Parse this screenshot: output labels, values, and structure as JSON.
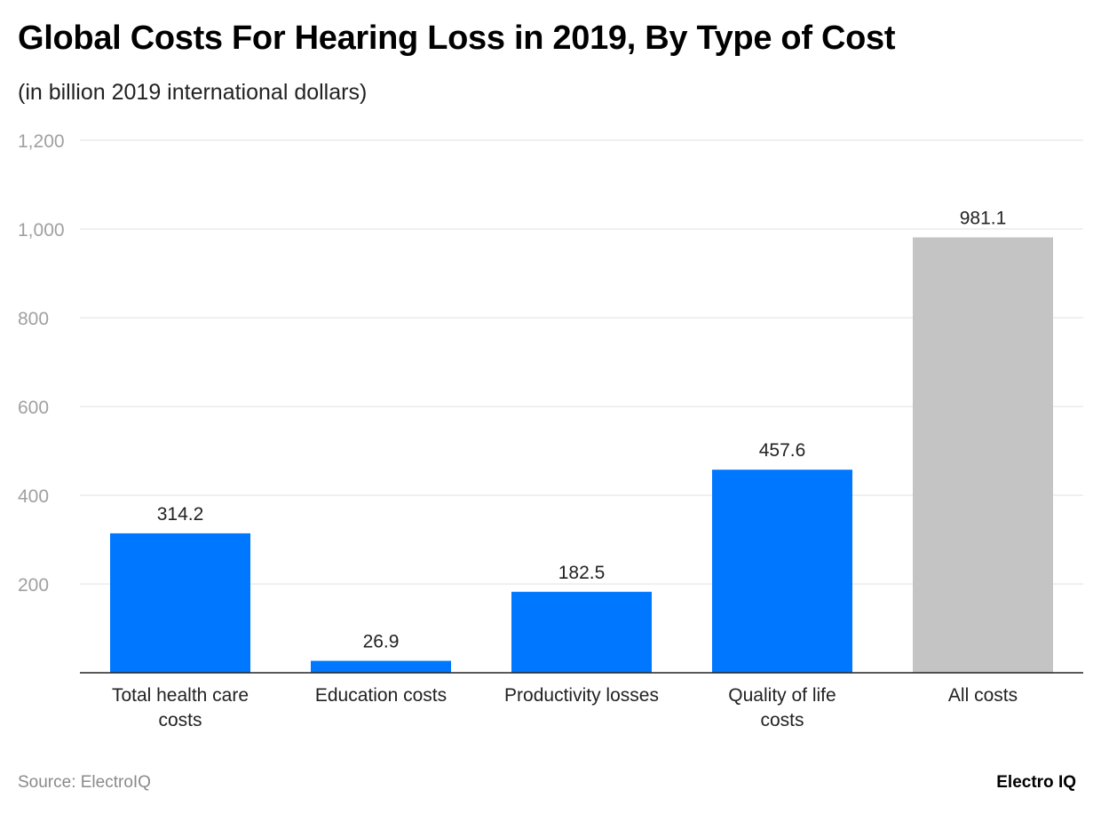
{
  "chart_data": {
    "type": "bar",
    "title": "Global Costs For Hearing Loss in 2019, By Type of Cost",
    "subtitle": "(in billion 2019 international dollars)",
    "categories": [
      [
        "Total health care",
        "costs"
      ],
      [
        "Education costs"
      ],
      [
        "Productivity losses"
      ],
      [
        "Quality of life",
        "costs"
      ],
      [
        "All costs"
      ]
    ],
    "values": [
      314.2,
      26.9,
      182.5,
      457.6,
      981.1
    ],
    "value_labels": [
      "314.2",
      "26.9",
      "182.5",
      "457.6",
      "981.1"
    ],
    "bar_colors": [
      "#0077ff",
      "#0077ff",
      "#0077ff",
      "#0077ff",
      "#c4c4c4"
    ],
    "ylim": [
      0,
      1200
    ],
    "yticks": [
      200,
      400,
      600,
      800,
      1000,
      1200
    ],
    "ytick_labels": [
      "200",
      "400",
      "600",
      "800",
      "1,000",
      "1,200"
    ],
    "grid": true,
    "xlabel": "",
    "ylabel": ""
  },
  "footer": {
    "source": "Source: ElectroIQ",
    "logo": "Electro IQ"
  }
}
